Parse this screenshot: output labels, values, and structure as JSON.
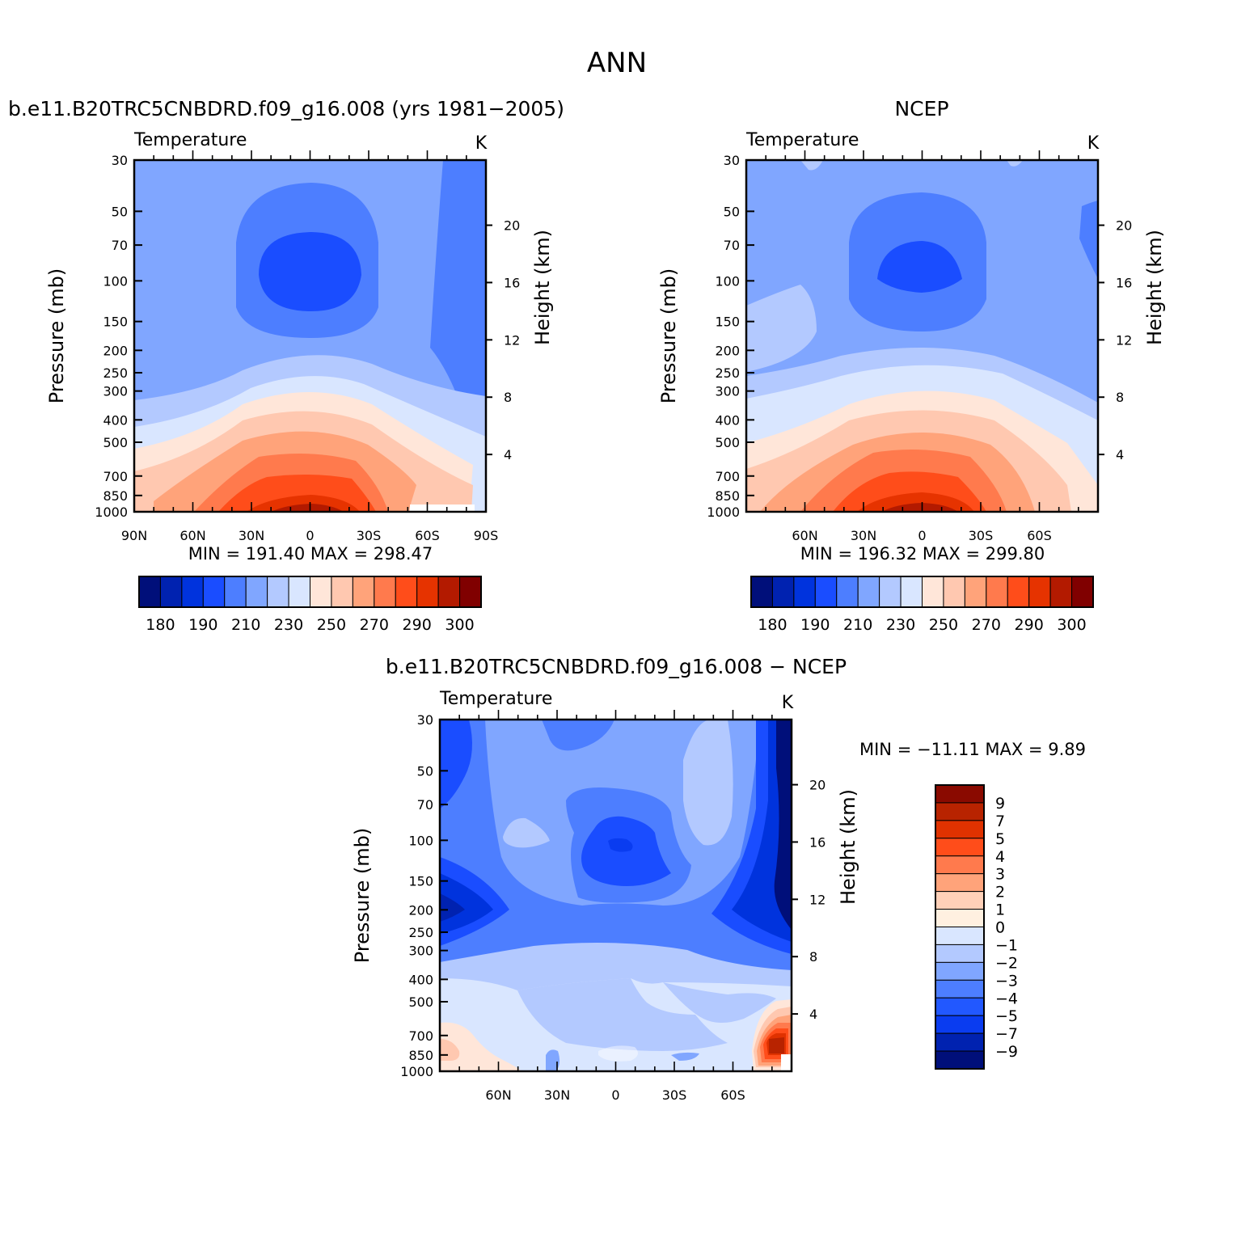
{
  "page": {
    "title": "ANN"
  },
  "chart_data": [
    {
      "type": "heatmap",
      "id": "model",
      "title": "b.e11.B20TRC5CNBDRD.f09_g16.008 (yrs 1981-2005)",
      "variable": "Temperature",
      "units": "K",
      "ylabel": "Pressure (mb)",
      "y2label": "Height (km)",
      "yticks": [
        "30",
        "50",
        "70",
        "100",
        "150",
        "200",
        "250",
        "300",
        "400",
        "500",
        "700",
        "850",
        "1000"
      ],
      "y2ticks": [
        "20",
        "16",
        "12",
        "8",
        "4"
      ],
      "xticks": [
        "90N",
        "60N",
        "30N",
        "0",
        "30S",
        "60S",
        "90S"
      ],
      "min_label": "MIN =",
      "min": "191.40",
      "max_label": "MAX =",
      "max": "298.47",
      "colorbar": {
        "orientation": "horizontal",
        "labels": [
          "180",
          "190",
          "210",
          "230",
          "250",
          "270",
          "290",
          "300"
        ],
        "colors": [
          "#000f7a",
          "#0022b0",
          "#0033dd",
          "#1a4dff",
          "#4d7eff",
          "#80a6ff",
          "#b3c9ff",
          "#d9e6ff",
          "#ffe6d9",
          "#ffc8b0",
          "#ffa37a",
          "#ff7a4d",
          "#ff4d1a",
          "#e63300",
          "#b31a00",
          "#800000"
        ]
      }
    },
    {
      "type": "heatmap",
      "id": "obs",
      "title": "NCEP",
      "variable": "Temperature",
      "units": "K",
      "ylabel": "Pressure (mb)",
      "y2label": "Height (km)",
      "yticks": [
        "30",
        "50",
        "70",
        "100",
        "150",
        "200",
        "250",
        "300",
        "400",
        "500",
        "700",
        "850",
        "1000"
      ],
      "y2ticks": [
        "20",
        "16",
        "12",
        "8",
        "4"
      ],
      "xticks": [
        "60N",
        "30N",
        "0",
        "30S",
        "60S"
      ],
      "min_label": "MIN =",
      "min": "196.32",
      "max_label": "MAX =",
      "max": "299.80",
      "colorbar": {
        "orientation": "horizontal",
        "labels": [
          "180",
          "190",
          "210",
          "230",
          "250",
          "270",
          "290",
          "300"
        ],
        "colors": [
          "#000f7a",
          "#0022b0",
          "#0033dd",
          "#1a4dff",
          "#4d7eff",
          "#80a6ff",
          "#b3c9ff",
          "#d9e6ff",
          "#ffe6d9",
          "#ffc8b0",
          "#ffa37a",
          "#ff7a4d",
          "#ff4d1a",
          "#e63300",
          "#b31a00",
          "#800000"
        ]
      }
    },
    {
      "type": "heatmap",
      "id": "diff",
      "title": "b.e11.B20TRC5CNBDRD.f09_g16.008 - NCEP",
      "variable": "Temperature",
      "units": "K",
      "ylabel": "Pressure (mb)",
      "y2label": "Height (km)",
      "yticks": [
        "30",
        "50",
        "70",
        "100",
        "150",
        "200",
        "250",
        "300",
        "400",
        "500",
        "700",
        "850",
        "1000"
      ],
      "y2ticks": [
        "20",
        "16",
        "12",
        "8",
        "4"
      ],
      "xticks": [
        "60N",
        "30N",
        "0",
        "30S",
        "60S"
      ],
      "min_label": "MIN =",
      "min": "-11.11",
      "max_label": "MAX =",
      "max": "9.89",
      "colorbar": {
        "orientation": "vertical",
        "labels": [
          "9",
          "7",
          "5",
          "4",
          "3",
          "2",
          "1",
          "0",
          "-1",
          "-2",
          "-3",
          "-4",
          "-5",
          "-7",
          "-9"
        ],
        "colors": [
          "#8a0a00",
          "#b82300",
          "#e03200",
          "#ff4d1a",
          "#ff7a4d",
          "#ffa37a",
          "#ffd0b8",
          "#fff0e0",
          "#d9e6ff",
          "#b3c9ff",
          "#80a6ff",
          "#4d7eff",
          "#2258ff",
          "#0a3cf0",
          "#0022b0",
          "#000f7a"
        ]
      }
    }
  ]
}
